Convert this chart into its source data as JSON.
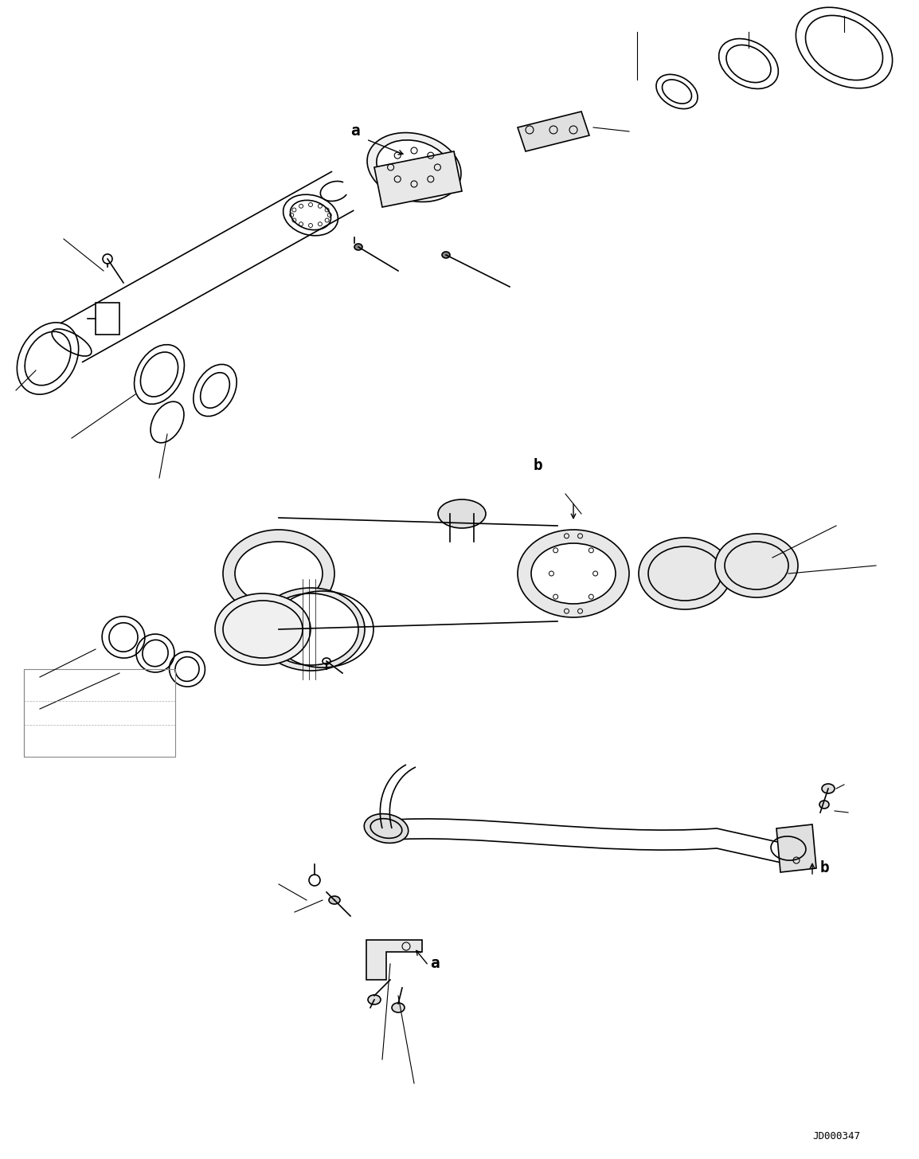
{
  "bg_color": "#ffffff",
  "line_color": "#000000",
  "figure_width": 11.54,
  "figure_height": 14.55,
  "dpi": 100,
  "watermark": "JD000347",
  "label_a1": "a",
  "label_b1": "b",
  "label_b2": "b",
  "label_a2": "a"
}
